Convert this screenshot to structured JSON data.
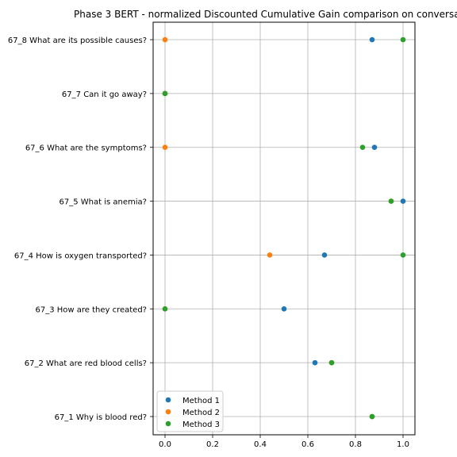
{
  "chart_data": {
    "type": "scatter",
    "title": "Phase 3 BERT - normalized Discounted Cumulative Gain comparison on conversa",
    "xlabel": "",
    "ylabel": "",
    "xlim": [
      -0.05,
      1.05
    ],
    "xticks": [
      "0.0",
      "0.2",
      "0.4",
      "0.6",
      "0.8",
      "1.0"
    ],
    "xtick_values": [
      0.0,
      0.2,
      0.4,
      0.6,
      0.8,
      1.0
    ],
    "categories": [
      "67_1 Why is blood red?",
      "67_2 What are red blood cells?",
      "67_3 How are they created?",
      "67_4 How is oxygen transported?",
      "67_5 What is anemia?",
      "67_6 What are the symptoms?",
      "67_7 Can it go away?",
      "67_8 What are its possible causes?"
    ],
    "grid": true,
    "legend_position": "lower-left",
    "series": [
      {
        "name": "Method 1",
        "color": "#1f77b4",
        "values": [
          0.87,
          0.63,
          0.5,
          0.67,
          1.0,
          0.88,
          0.0,
          0.87
        ]
      },
      {
        "name": "Method 2",
        "color": "#ff7f0e",
        "values": [
          0.87,
          0.7,
          0.0,
          0.44,
          0.95,
          0.0,
          0.0,
          0.0
        ]
      },
      {
        "name": "Method 3",
        "color": "#2ca02c",
        "values": [
          0.87,
          0.7,
          0.0,
          1.0,
          0.95,
          0.83,
          0.0,
          1.0
        ]
      }
    ]
  }
}
